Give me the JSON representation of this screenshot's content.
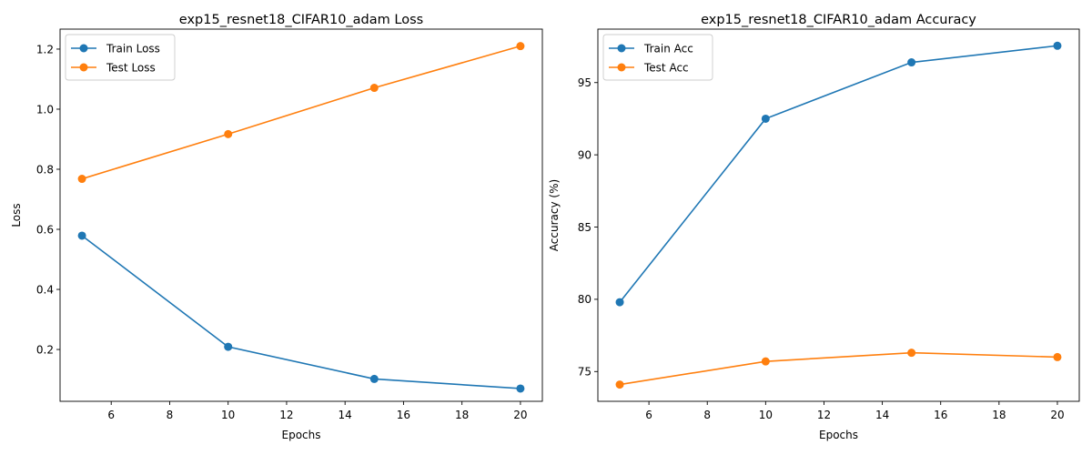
{
  "chart_data": [
    {
      "type": "line",
      "title": "exp15_resnet18_CIFAR10_adam Loss",
      "xlabel": "Epochs",
      "ylabel": "Loss",
      "x": [
        5,
        10,
        15,
        20
      ],
      "xlim": [
        4.25,
        20.75
      ],
      "ylim": [
        0.0275,
        1.2665
      ],
      "xticks": [
        6,
        8,
        10,
        12,
        14,
        16,
        18,
        20
      ],
      "yticks": [
        0.2,
        0.4,
        0.6,
        0.8,
        1.0,
        1.2
      ],
      "ytick_format": 1,
      "legend": "top-left",
      "grid": false,
      "series": [
        {
          "name": "Train Loss",
          "color": "#1f77b4",
          "values": [
            0.579,
            0.209,
            0.102,
            0.07
          ]
        },
        {
          "name": "Test Loss",
          "color": "#ff7f0e",
          "values": [
            0.768,
            0.917,
            1.071,
            1.21
          ]
        }
      ]
    },
    {
      "type": "line",
      "title": "exp15_resnet18_CIFAR10_adam Accuracy",
      "xlabel": "Epochs",
      "ylabel": "Accuracy (%)",
      "x": [
        5,
        10,
        15,
        20
      ],
      "xlim": [
        4.25,
        20.75
      ],
      "ylim": [
        72.94,
        98.7
      ],
      "xticks": [
        6,
        8,
        10,
        12,
        14,
        16,
        18,
        20
      ],
      "yticks": [
        75,
        80,
        85,
        90,
        95
      ],
      "ytick_format": 0,
      "legend": "top-left",
      "grid": false,
      "series": [
        {
          "name": "Train Acc",
          "color": "#1f77b4",
          "values": [
            79.8,
            92.5,
            96.4,
            97.55
          ]
        },
        {
          "name": "Test Acc",
          "color": "#ff7f0e",
          "values": [
            74.1,
            75.7,
            76.3,
            76.0
          ]
        }
      ]
    }
  ]
}
